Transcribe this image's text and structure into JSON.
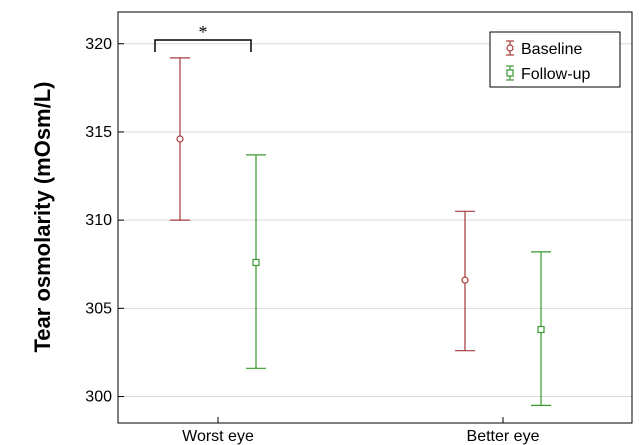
{
  "chart_data": {
    "type": "errorbar",
    "title": "",
    "xlabel": "",
    "ylabel": "Tear osmolarity (mOsm/L)",
    "categories": [
      "Worst eye",
      "Better eye"
    ],
    "ylim": [
      298.5,
      321.8
    ],
    "yticks": [
      300,
      305,
      310,
      315,
      320
    ],
    "grid": true,
    "legend_position": "top-right",
    "series": [
      {
        "name": "Baseline",
        "color": "#a33a3a",
        "marker": "circle",
        "values": [
          314.6,
          306.6
        ],
        "lower": [
          310.0,
          302.6
        ],
        "upper": [
          319.2,
          310.5
        ]
      },
      {
        "name": "Follow-up",
        "color": "#3a9a2f",
        "marker": "square",
        "values": [
          307.6,
          303.8
        ],
        "lower": [
          301.6,
          299.5
        ],
        "upper": [
          313.7,
          308.2
        ]
      }
    ],
    "annotations": [
      {
        "text": "*",
        "category": "Worst eye",
        "between": [
          "Baseline",
          "Follow-up"
        ]
      }
    ]
  }
}
